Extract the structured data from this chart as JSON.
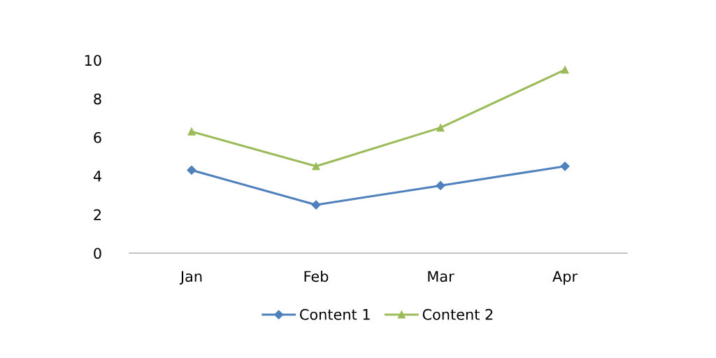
{
  "chart_data": {
    "type": "line",
    "categories": [
      "Jan",
      "Feb",
      "Mar",
      "Apr"
    ],
    "series": [
      {
        "name": "Content 1",
        "color": "#4f81bd",
        "marker": "diamond",
        "values": [
          4.3,
          2.5,
          3.5,
          4.5
        ]
      },
      {
        "name": "Content 2",
        "color": "#9bbb59",
        "marker": "triangle",
        "values": [
          6.3,
          4.5,
          6.5,
          9.5
        ]
      }
    ],
    "ylim": [
      0,
      10
    ],
    "yticks": [
      0,
      2,
      4,
      6,
      8,
      10
    ],
    "grid": false,
    "legend": "bottom",
    "line_style": "solid"
  }
}
